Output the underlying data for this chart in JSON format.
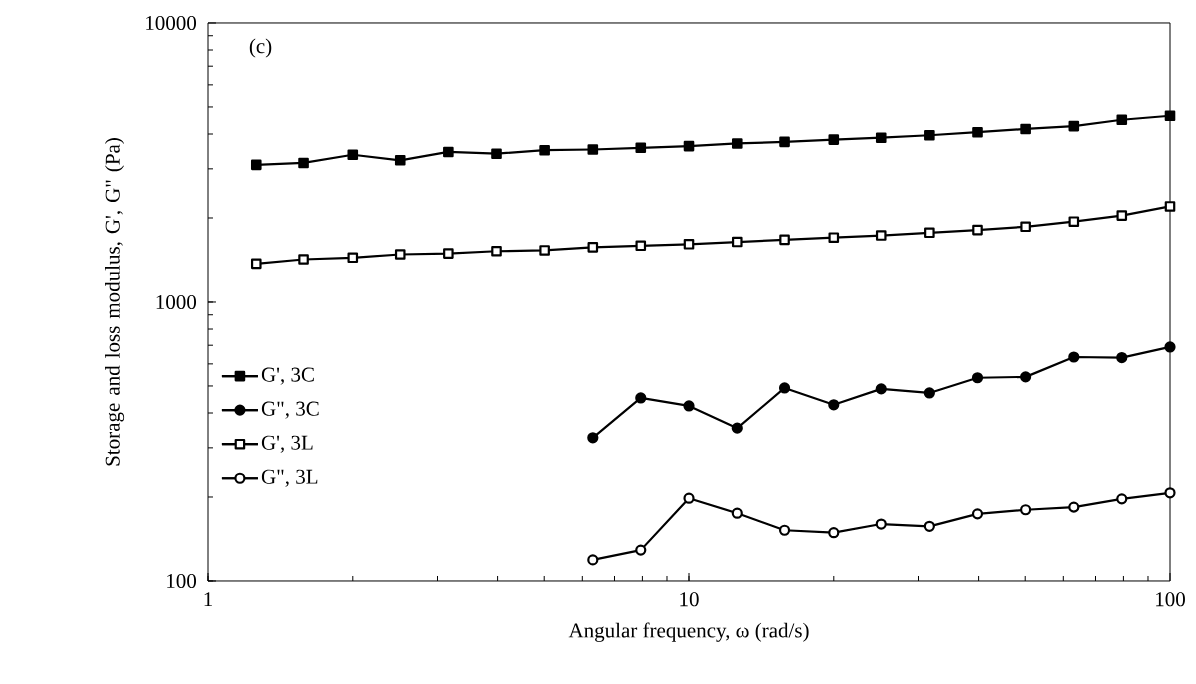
{
  "chart_data": {
    "type": "line",
    "xlabel": "Angular frequency, ω (rad/s)",
    "ylabel": "Storage and loss modulus, G', G\" (Pa)",
    "annotations": [
      "(c)"
    ],
    "log": "xy",
    "xlim": [
      1,
      100
    ],
    "ylim": [
      100,
      10000
    ],
    "xticks": [
      1,
      10,
      100
    ],
    "yticks": [
      100,
      1000,
      10000
    ],
    "grid": false,
    "legend": "left",
    "line_style": "solid",
    "series": [
      {
        "name": "G',  3C",
        "color": "#000000",
        "marker": "square",
        "x": [
          1.26,
          1.58,
          2,
          2.51,
          3.16,
          3.98,
          5.01,
          6.31,
          7.94,
          10,
          12.6,
          15.8,
          20,
          25.1,
          31.6,
          39.8,
          50.1,
          63.1,
          79.4,
          100
        ],
        "values": [
          3100,
          3150,
          3370,
          3220,
          3450,
          3400,
          3500,
          3520,
          3570,
          3620,
          3700,
          3750,
          3820,
          3880,
          3960,
          4060,
          4170,
          4270,
          4500,
          4650
        ]
      },
      {
        "name": "G\", 3C",
        "color": "#000000",
        "marker": "circle",
        "x": [
          6.31,
          7.94,
          10,
          12.6,
          15.8,
          20,
          25.1,
          31.6,
          39.8,
          50.1,
          63.1,
          79.4,
          100
        ],
        "values": [
          326,
          453,
          424,
          353,
          492,
          428,
          488,
          472,
          535,
          539,
          635,
          632,
          690
        ]
      },
      {
        "name": "G',  3L",
        "color": "#000000",
        "marker": "square",
        "x": [
          1.26,
          1.58,
          2,
          2.51,
          3.16,
          3.98,
          5.01,
          6.31,
          7.94,
          10,
          12.6,
          15.8,
          20,
          25.1,
          31.6,
          39.8,
          50.1,
          63.1,
          79.4,
          100
        ],
        "values": [
          1370,
          1420,
          1440,
          1480,
          1490,
          1520,
          1530,
          1570,
          1590,
          1610,
          1640,
          1670,
          1700,
          1730,
          1770,
          1810,
          1860,
          1940,
          2040,
          2200
        ]
      },
      {
        "name": "G\", 3L",
        "color": "#000000",
        "marker": "circle",
        "x": [
          6.31,
          7.94,
          10,
          12.6,
          15.8,
          20,
          25.1,
          31.6,
          39.8,
          50.1,
          63.1,
          79.4,
          100
        ],
        "values": [
          119,
          129,
          198,
          175,
          152,
          149,
          160,
          157,
          174,
          180,
          184,
          197,
          207
        ]
      }
    ]
  }
}
